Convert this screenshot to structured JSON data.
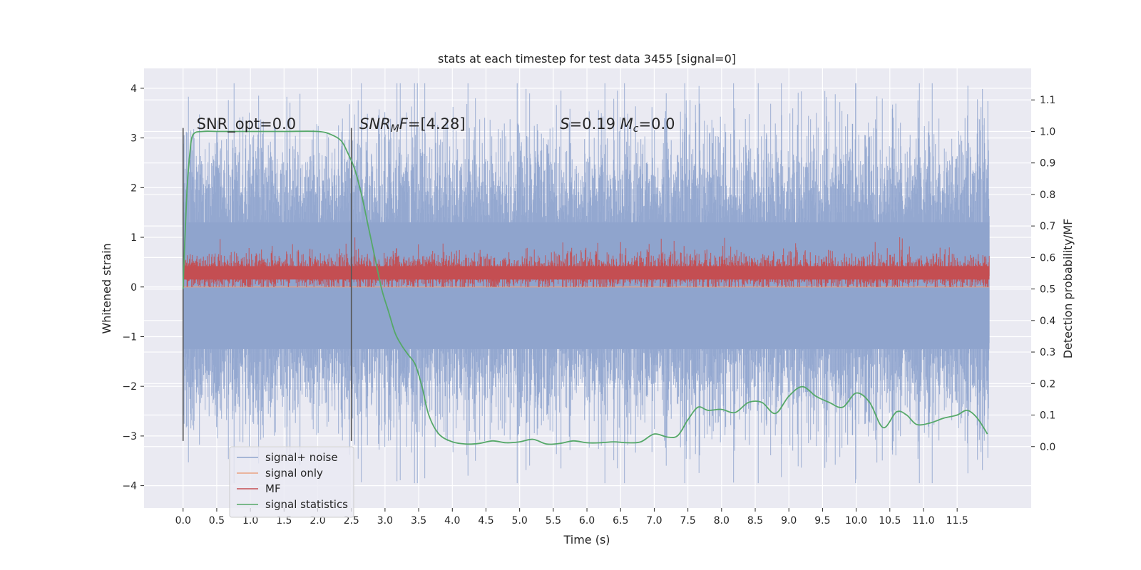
{
  "chart_data": {
    "type": "line",
    "title": "stats at each timestep for test data 3455 [signal=0]",
    "xlabel": "Time (s)",
    "ylabel": "Whitened strain",
    "ylabel_right": "Detection probability/MF",
    "xlim": [
      -0.58,
      12.6
    ],
    "ylim": [
      -4.45,
      4.4
    ],
    "ylim_right": [
      -0.195,
      1.2
    ],
    "x_ticks": [
      0.0,
      0.5,
      1.0,
      1.5,
      2.0,
      2.5,
      3.0,
      3.5,
      4.0,
      4.5,
      5.0,
      5.5,
      6.0,
      6.5,
      7.0,
      7.5,
      8.0,
      8.5,
      9.0,
      9.5,
      10.0,
      10.5,
      11.0,
      11.5
    ],
    "x_tick_labels": [
      "0.0",
      "0.5",
      "1.0",
      "1.5",
      "2.0",
      "2.5",
      "3.0",
      "3.5",
      "4.0",
      "4.5",
      "5.0",
      "5.5",
      "6.0",
      "6.5",
      "7.0",
      "7.5",
      "8.0",
      "8.5",
      "9.0",
      "9.5",
      "10.0",
      "10.5",
      "11.0",
      "11.5"
    ],
    "y_ticks": [
      -4,
      -3,
      -2,
      -1,
      0,
      1,
      2,
      3,
      4
    ],
    "y_tick_labels": [
      "−4",
      "−3",
      "−2",
      "−1",
      "0",
      "1",
      "2",
      "3",
      "4"
    ],
    "y_right_ticks": [
      0.0,
      0.1,
      0.2,
      0.3,
      0.4,
      0.5,
      0.6,
      0.7,
      0.8,
      0.9,
      1.0,
      1.1
    ],
    "y_right_tick_labels": [
      "0.0",
      "0.1",
      "0.2",
      "0.3",
      "0.4",
      "0.5",
      "0.6",
      "0.7",
      "0.8",
      "0.9",
      "1.0",
      "1.1"
    ],
    "grid": true,
    "legend_placement": "lower-left",
    "colors": {
      "plot_background": "#eaeaf2",
      "grid": "#ffffff",
      "noise": "#8fa4cd",
      "signal_only": "#e9a282",
      "mf": "#c44e52",
      "stats": "#55a868",
      "vline": "#555555"
    },
    "series": [
      {
        "name": "signal+ noise",
        "axis": "left",
        "x_range": [
          0.0,
          11.98
        ],
        "envelope_typical": [
          -2.0,
          2.4
        ],
        "extremes": [
          -3.95,
          4.1
        ]
      },
      {
        "name": "signal only",
        "axis": "left",
        "x_range": [
          0.0,
          11.98
        ],
        "values_constant": 0.0
      },
      {
        "name": "MF",
        "axis": "left",
        "x_range": [
          0.0,
          11.98
        ],
        "envelope_typical": [
          0.05,
          0.65
        ],
        "extremes": [
          0.0,
          1.0
        ]
      },
      {
        "name": "signal statistics",
        "axis": "right",
        "x": [
          0.0,
          0.05,
          0.1,
          0.15,
          0.3,
          0.5,
          1.0,
          1.5,
          2.0,
          2.2,
          2.35,
          2.45,
          2.55,
          2.65,
          2.75,
          2.85,
          2.95,
          3.05,
          3.15,
          3.25,
          3.35,
          3.45,
          3.55,
          3.65,
          3.8,
          4.0,
          4.2,
          4.4,
          4.6,
          4.8,
          5.0,
          5.2,
          5.4,
          5.6,
          5.8,
          6.0,
          6.2,
          6.4,
          6.6,
          6.8,
          7.0,
          7.2,
          7.35,
          7.5,
          7.65,
          7.8,
          8.0,
          8.2,
          8.4,
          8.6,
          8.8,
          9.0,
          9.2,
          9.4,
          9.6,
          9.8,
          10.0,
          10.2,
          10.4,
          10.6,
          10.75,
          10.9,
          11.1,
          11.3,
          11.5,
          11.65,
          11.8,
          11.95
        ],
        "values": [
          0.5,
          0.78,
          0.93,
          0.99,
          1.0,
          1.0,
          1.0,
          1.0,
          1.0,
          0.99,
          0.97,
          0.93,
          0.88,
          0.8,
          0.7,
          0.6,
          0.5,
          0.43,
          0.36,
          0.32,
          0.29,
          0.26,
          0.19,
          0.1,
          0.04,
          0.015,
          0.008,
          0.01,
          0.018,
          0.012,
          0.015,
          0.023,
          0.008,
          0.01,
          0.018,
          0.012,
          0.012,
          0.015,
          0.012,
          0.015,
          0.04,
          0.03,
          0.035,
          0.085,
          0.125,
          0.115,
          0.118,
          0.108,
          0.14,
          0.14,
          0.105,
          0.16,
          0.19,
          0.16,
          0.14,
          0.125,
          0.17,
          0.14,
          0.06,
          0.11,
          0.1,
          0.07,
          0.075,
          0.09,
          0.1,
          0.115,
          0.09,
          0.04
        ]
      }
    ],
    "vertical_lines": [
      {
        "x": 0.0,
        "y_range": [
          -3.1,
          3.2
        ]
      },
      {
        "x": 2.5,
        "y_range": [
          -3.1,
          3.2
        ]
      }
    ],
    "annotations": [
      {
        "x": 0.2,
        "y": 3.18,
        "parts": [
          {
            "t": "SNR_opt=0.0"
          }
        ]
      },
      {
        "x": 2.62,
        "y": 3.18,
        "parts": [
          {
            "t": "SNR",
            "i": true
          },
          {
            "t": "M",
            "i": true,
            "sub": true
          },
          {
            "t": "F",
            "i": true
          },
          {
            "t": "=[4.28]"
          }
        ]
      },
      {
        "x": 5.6,
        "y": 3.18,
        "parts": [
          {
            "t": "S",
            "i": true
          },
          {
            "t": "=0.19   "
          },
          {
            "t": "M",
            "i": true
          },
          {
            "t": "c",
            "i": true,
            "sub": true
          },
          {
            "t": "=0.0"
          }
        ]
      }
    ]
  }
}
